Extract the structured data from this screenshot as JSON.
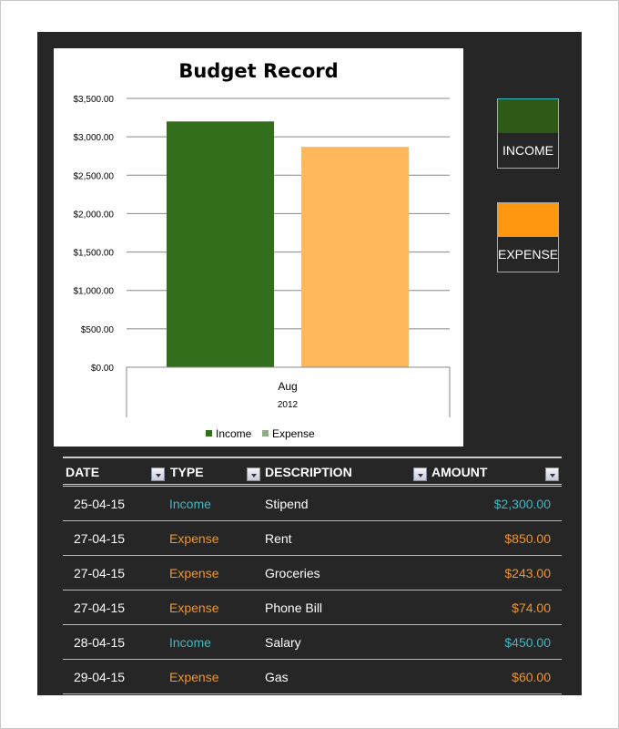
{
  "chart_data": {
    "type": "bar",
    "title": "Budget Record",
    "categories": [
      "Aug"
    ],
    "category_group": "2012",
    "series": [
      {
        "name": "Income",
        "values": [
          3200
        ],
        "color": "#336e1d"
      },
      {
        "name": "Expense",
        "values": [
          2870
        ],
        "color": "#ffb95c"
      }
    ],
    "legend_colors": [
      "#336e1d",
      "#8fac84"
    ],
    "ylim": [
      0,
      3500
    ],
    "yticks": [
      0,
      500,
      1000,
      1500,
      2000,
      2500,
      3000,
      3500
    ],
    "ytick_labels": [
      "$0.00",
      "$500.00",
      "$1,000.00",
      "$1,500.00",
      "$2,000.00",
      "$2,500.00",
      "$3,000.00",
      "$3,500.00"
    ],
    "grid": true,
    "legend_position": "bottom"
  },
  "side_legend": [
    {
      "label": "INCOME",
      "color": "#2e5a18"
    },
    {
      "label": "EXPENSE",
      "color": "#ff9711"
    }
  ],
  "table": {
    "headers": [
      "DATE",
      "TYPE",
      "DESCRIPTION",
      "AMOUNT"
    ],
    "rows": [
      {
        "date": "25-04-15",
        "type": "Income",
        "desc": "Stipend",
        "amount": "$2,300.00"
      },
      {
        "date": "27-04-15",
        "type": "Expense",
        "desc": "Rent",
        "amount": "$850.00"
      },
      {
        "date": "27-04-15",
        "type": "Expense",
        "desc": "Groceries",
        "amount": "$243.00"
      },
      {
        "date": "27-04-15",
        "type": "Expense",
        "desc": "Phone Bill",
        "amount": "$74.00"
      },
      {
        "date": "28-04-15",
        "type": "Income",
        "desc": "Salary",
        "amount": "$450.00"
      },
      {
        "date": "29-04-15",
        "type": "Expense",
        "desc": "Gas",
        "amount": "$60.00"
      }
    ],
    "colors": {
      "Income": "#3cb9c4",
      "Expense": "#f7941d"
    }
  }
}
